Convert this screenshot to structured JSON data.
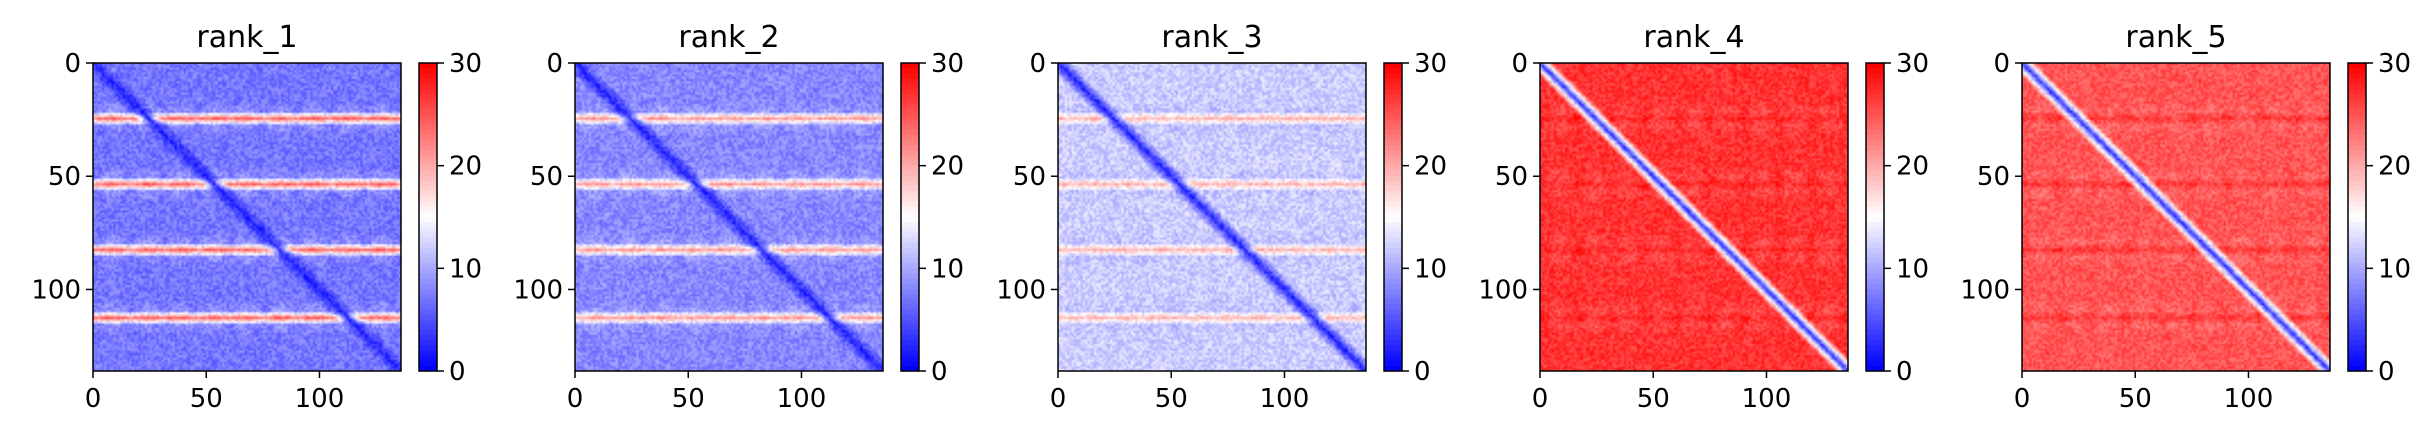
{
  "chart_data": [
    {
      "type": "heatmap",
      "title": "rank_1",
      "xlim": [
        0,
        136
      ],
      "ylim": [
        0,
        136
      ],
      "x_ticks": [
        "0",
        "50",
        "100"
      ],
      "x_tick_values": [
        0,
        50,
        100
      ],
      "y_ticks": [
        "0",
        "50",
        "100"
      ],
      "y_tick_values": [
        0,
        50,
        100
      ],
      "colorbar": {
        "range": [
          0,
          30
        ],
        "ticks": [
          "0",
          "10",
          "20",
          "30"
        ],
        "tick_values": [
          0,
          10,
          20,
          30
        ],
        "colormap": "bwr"
      },
      "pattern": {
        "background": 7,
        "diagonal": 2,
        "bands": [
          24,
          53,
          82,
          112
        ],
        "band_value": 24,
        "blob_value": 16
      }
    },
    {
      "type": "heatmap",
      "title": "rank_2",
      "xlim": [
        0,
        136
      ],
      "ylim": [
        0,
        136
      ],
      "x_ticks": [
        "0",
        "50",
        "100"
      ],
      "x_tick_values": [
        0,
        50,
        100
      ],
      "y_ticks": [
        "0",
        "50",
        "100"
      ],
      "y_tick_values": [
        0,
        50,
        100
      ],
      "colorbar": {
        "range": [
          0,
          30
        ],
        "ticks": [
          "0",
          "10",
          "20",
          "30"
        ],
        "tick_values": [
          0,
          10,
          20,
          30
        ],
        "colormap": "bwr"
      },
      "pattern": {
        "background": 8,
        "diagonal": 2,
        "bands": [
          24,
          53,
          82,
          112
        ],
        "band_value": 21,
        "blob_value": 15
      }
    },
    {
      "type": "heatmap",
      "title": "rank_3",
      "xlim": [
        0,
        136
      ],
      "ylim": [
        0,
        136
      ],
      "x_ticks": [
        "0",
        "50",
        "100"
      ],
      "x_tick_values": [
        0,
        50,
        100
      ],
      "y_ticks": [
        "0",
        "50",
        "100"
      ],
      "y_tick_values": [
        0,
        50,
        100
      ],
      "colorbar": {
        "range": [
          0,
          30
        ],
        "ticks": [
          "0",
          "10",
          "20",
          "30"
        ],
        "tick_values": [
          0,
          10,
          20,
          30
        ],
        "colormap": "bwr"
      },
      "pattern": {
        "background": 12,
        "diagonal": 2,
        "bands": [
          24,
          53,
          82,
          112
        ],
        "band_value": 21,
        "blob_value": 8
      }
    },
    {
      "type": "heatmap",
      "title": "rank_4",
      "xlim": [
        0,
        136
      ],
      "ylim": [
        0,
        136
      ],
      "x_ticks": [
        "0",
        "50",
        "100"
      ],
      "x_tick_values": [
        0,
        50,
        100
      ],
      "y_ticks": [
        "0",
        "50",
        "100"
      ],
      "y_tick_values": [
        0,
        50,
        100
      ],
      "colorbar": {
        "range": [
          0,
          30
        ],
        "ticks": [
          "0",
          "10",
          "20",
          "30"
        ],
        "tick_values": [
          0,
          10,
          20,
          30
        ],
        "colormap": "bwr"
      },
      "pattern": {
        "background": 27,
        "diagonal": 3,
        "bands": [
          24,
          53,
          82,
          112
        ],
        "band_value": 29,
        "blob_value": 20
      }
    },
    {
      "type": "heatmap",
      "title": "rank_5",
      "xlim": [
        0,
        136
      ],
      "ylim": [
        0,
        136
      ],
      "x_ticks": [
        "0",
        "50",
        "100"
      ],
      "x_tick_values": [
        0,
        50,
        100
      ],
      "y_ticks": [
        "0",
        "50",
        "100"
      ],
      "y_tick_values": [
        0,
        50,
        100
      ],
      "colorbar": {
        "range": [
          0,
          30
        ],
        "ticks": [
          "0",
          "10",
          "20",
          "30"
        ],
        "tick_values": [
          0,
          10,
          20,
          30
        ],
        "colormap": "bwr"
      },
      "pattern": {
        "background": 25,
        "diagonal": 3,
        "bands": [
          24,
          53,
          82,
          112
        ],
        "band_value": 28,
        "blob_value": 19
      }
    }
  ]
}
